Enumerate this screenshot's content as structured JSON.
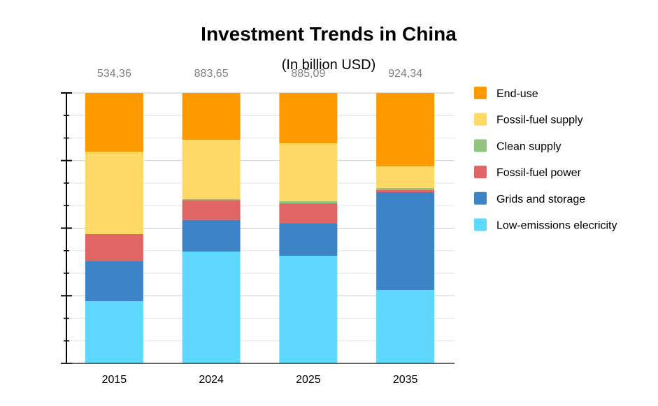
{
  "chart_data": {
    "type": "bar",
    "stacked": true,
    "normalized_percent": true,
    "title": "Investment Trends in China",
    "subtitle": "(In billion USD)",
    "xlabel": "",
    "ylabel": "",
    "ylim": [
      0,
      100
    ],
    "y_tick_labels_visible": false,
    "major_gridline_step": 25,
    "minor_gridline_step": 8.333,
    "grid": true,
    "legend_position": "right",
    "categories": [
      "2015",
      "2024",
      "2025",
      "2035"
    ],
    "totals": [
      534.36,
      883.65,
      885.09,
      924.34
    ],
    "total_labels": [
      "534,36",
      "883,65",
      "885,09",
      "924,34"
    ],
    "series": [
      {
        "name": "Low-emissions elecricity",
        "color": "#5fd8ff",
        "values": [
          122.9,
          365.3,
          352.2,
          250.8
        ]
      },
      {
        "name": "Grids and storage",
        "color": "#3d84c7",
        "values": [
          78.7,
          103.4,
          106.3,
          334.4
        ]
      },
      {
        "name": "Fossil-fuel power",
        "color": "#e06666",
        "values": [
          53.9,
          64.4,
          65.2,
          7.2
        ]
      },
      {
        "name": "Clean supply",
        "color": "#93c47d",
        "values": [
          0.0,
          4.1,
          6.9,
          7.2
        ]
      },
      {
        "name": "Fossil-fuel supply",
        "color": "#ffd966",
        "values": [
          162.9,
          193.4,
          189.8,
          74.0
        ]
      },
      {
        "name": "End-use",
        "color": "#ff9900",
        "values": [
          116.0,
          153.0,
          164.7,
          250.7
        ]
      }
    ]
  }
}
